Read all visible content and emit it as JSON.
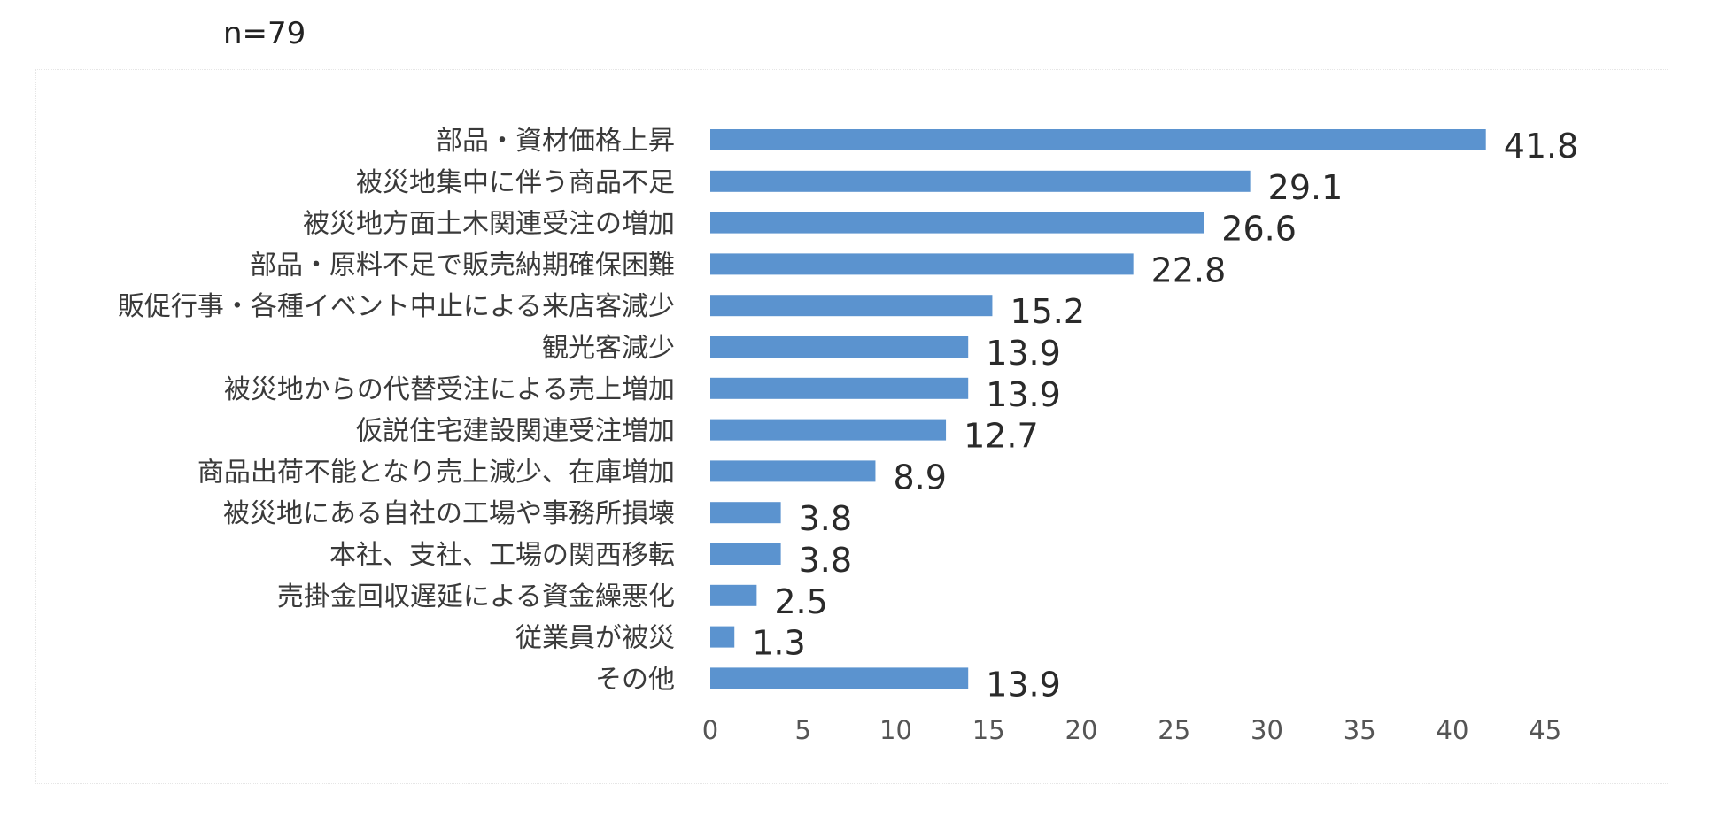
{
  "header": {
    "note": "n=79"
  },
  "chart_data": {
    "type": "bar",
    "orientation": "horizontal",
    "title": "",
    "xlabel": "",
    "ylabel": "",
    "xlim": [
      0,
      45
    ],
    "x_ticks": [
      "0",
      "5",
      "10",
      "15",
      "20",
      "25",
      "30",
      "35",
      "40",
      "45"
    ],
    "grid": false,
    "legend": "none",
    "bar_color": "#5b93cf",
    "categories": [
      "部品・資材価格上昇",
      "被災地集中に伴う商品不足",
      "被災地方面土木関連受注の増加",
      "部品・原料不足で販売納期確保困難",
      "販促行事・各種イベント中止による来店客減少",
      "観光客減少",
      "被災地からの代替受注による売上増加",
      "仮説住宅建設関連受注増加",
      "商品出荷不能となり売上減少、在庫増加",
      "被災地にある自社の工場や事務所損壊",
      "本社、支社、工場の関西移転",
      "売掛金回収遅延による資金繰悪化",
      "従業員が被災",
      "その他"
    ],
    "values": [
      41.8,
      29.1,
      26.6,
      22.8,
      15.2,
      13.9,
      13.9,
      12.7,
      8.9,
      3.8,
      3.8,
      2.5,
      1.3,
      13.9
    ],
    "value_labels": [
      "41.8",
      "29.1",
      "26.6",
      "22.8",
      "15.2",
      "13.9",
      "13.9",
      "12.7",
      "8.9",
      "3.8",
      "3.8",
      "2.5",
      "1.3",
      "13.9"
    ]
  }
}
